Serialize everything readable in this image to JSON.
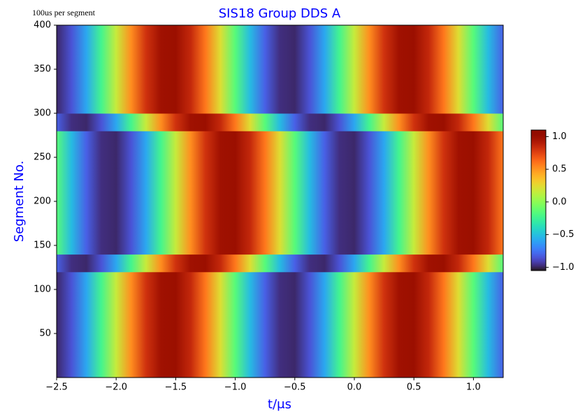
{
  "chart_data": {
    "type": "heatmap",
    "title": "SIS18 Group DDS A",
    "annotation": "100us per segment",
    "x_label": "t/μs",
    "y_label": "Segment No.",
    "colormap": "turbo",
    "colorbar": true,
    "clim": [
      -1.05,
      1.1
    ],
    "cticks": [
      {
        "value": -1.0,
        "label": "−1.0"
      },
      {
        "value": -0.5,
        "label": "−0.5"
      },
      {
        "value": 0.0,
        "label": "0.0"
      },
      {
        "value": 0.5,
        "label": "0.5"
      },
      {
        "value": 1.0,
        "label": "1.0"
      }
    ],
    "xlim": [
      -2.5,
      1.25
    ],
    "ylim": [
      0,
      400
    ],
    "xticks": [
      {
        "value": -2.5,
        "label": "−2.5"
      },
      {
        "value": -2.0,
        "label": "−2.0"
      },
      {
        "value": -1.5,
        "label": "−1.5"
      },
      {
        "value": -1.0,
        "label": "−1.0"
      },
      {
        "value": -0.5,
        "label": "−0.5"
      },
      {
        "value": 0.0,
        "label": "0.0"
      },
      {
        "value": 0.5,
        "label": "0.5"
      },
      {
        "value": 1.0,
        "label": "1.0"
      }
    ],
    "yticks": [
      50,
      100,
      150,
      200,
      250,
      300,
      350,
      400
    ],
    "x": [
      -2.5,
      -2.375,
      -2.25,
      -2.125,
      -2.0,
      -1.875,
      -1.75,
      -1.625,
      -1.5,
      -1.375,
      -1.25,
      -1.125,
      -1.0,
      -0.875,
      -0.75,
      -0.625,
      -0.5,
      -0.375,
      -0.25,
      -0.125,
      0.0,
      0.125,
      0.25,
      0.375,
      0.5,
      0.625,
      0.75,
      0.875,
      1.0,
      1.125,
      1.25
    ],
    "y": [
      10,
      30,
      50,
      70,
      90,
      110,
      130,
      150,
      170,
      190,
      210,
      230,
      250,
      270,
      290,
      310,
      330,
      350,
      370,
      390
    ],
    "z": [
      [
        -0.99,
        -0.85,
        -0.59,
        -0.23,
        0.16,
        0.52,
        0.81,
        0.97,
        0.99,
        0.85,
        0.59,
        0.23,
        -0.16,
        -0.52,
        -0.81,
        -0.97,
        -0.99,
        -0.85,
        -0.59,
        -0.23,
        0.16,
        0.52,
        0.81,
        0.97,
        0.99,
        0.85,
        0.59,
        0.23,
        -0.16,
        -0.52,
        -0.81
      ],
      [
        -0.99,
        -0.85,
        -0.59,
        -0.23,
        0.16,
        0.52,
        0.81,
        0.97,
        0.99,
        0.85,
        0.59,
        0.23,
        -0.16,
        -0.52,
        -0.81,
        -0.97,
        -0.99,
        -0.85,
        -0.59,
        -0.23,
        0.16,
        0.52,
        0.81,
        0.97,
        0.99,
        0.85,
        0.59,
        0.23,
        -0.16,
        -0.52,
        -0.81
      ],
      [
        -0.99,
        -0.85,
        -0.59,
        -0.23,
        0.16,
        0.52,
        0.81,
        0.97,
        0.99,
        0.85,
        0.59,
        0.23,
        -0.16,
        -0.52,
        -0.81,
        -0.97,
        -0.99,
        -0.85,
        -0.59,
        -0.23,
        0.16,
        0.52,
        0.81,
        0.97,
        0.99,
        0.85,
        0.59,
        0.23,
        -0.16,
        -0.52,
        -0.81
      ],
      [
        -0.99,
        -0.85,
        -0.59,
        -0.23,
        0.16,
        0.52,
        0.81,
        0.97,
        0.99,
        0.85,
        0.59,
        0.23,
        -0.16,
        -0.52,
        -0.81,
        -0.97,
        -0.99,
        -0.85,
        -0.59,
        -0.23,
        0.16,
        0.52,
        0.81,
        0.97,
        0.99,
        0.85,
        0.59,
        0.23,
        -0.16,
        -0.52,
        -0.81
      ],
      [
        -0.99,
        -0.85,
        -0.59,
        -0.23,
        0.16,
        0.52,
        0.81,
        0.97,
        0.99,
        0.85,
        0.59,
        0.23,
        -0.16,
        -0.52,
        -0.81,
        -0.97,
        -0.99,
        -0.85,
        -0.59,
        -0.23,
        0.16,
        0.52,
        0.81,
        0.97,
        0.99,
        0.85,
        0.59,
        0.23,
        -0.16,
        -0.52,
        -0.81
      ],
      [
        -0.99,
        -0.85,
        -0.59,
        -0.23,
        0.16,
        0.52,
        0.81,
        0.97,
        0.99,
        0.85,
        0.59,
        0.23,
        -0.16,
        -0.52,
        -0.81,
        -0.97,
        -0.99,
        -0.85,
        -0.59,
        -0.23,
        0.16,
        0.52,
        0.81,
        0.97,
        0.99,
        0.85,
        0.59,
        0.23,
        -0.16,
        -0.52,
        -0.81
      ],
      [
        -0.81,
        -0.97,
        -0.99,
        -0.85,
        -0.59,
        -0.23,
        0.16,
        0.52,
        0.81,
        0.97,
        0.99,
        0.85,
        0.59,
        0.23,
        -0.16,
        -0.52,
        -0.81,
        -0.97,
        -0.99,
        -0.85,
        -0.59,
        -0.23,
        0.16,
        0.52,
        0.81,
        0.97,
        0.99,
        0.85,
        0.59,
        0.23,
        -0.16
      ],
      [
        -0.16,
        -0.52,
        -0.81,
        -0.97,
        -0.99,
        -0.85,
        -0.59,
        -0.23,
        0.16,
        0.52,
        0.81,
        0.97,
        0.99,
        0.85,
        0.59,
        0.23,
        -0.16,
        -0.52,
        -0.81,
        -0.97,
        -0.99,
        -0.85,
        -0.59,
        -0.23,
        0.16,
        0.52,
        0.81,
        0.97,
        0.99,
        0.85,
        0.59
      ],
      [
        -0.16,
        -0.52,
        -0.81,
        -0.97,
        -0.99,
        -0.85,
        -0.59,
        -0.23,
        0.16,
        0.52,
        0.81,
        0.97,
        0.99,
        0.85,
        0.59,
        0.23,
        -0.16,
        -0.52,
        -0.81,
        -0.97,
        -0.99,
        -0.85,
        -0.59,
        -0.23,
        0.16,
        0.52,
        0.81,
        0.97,
        0.99,
        0.85,
        0.59
      ],
      [
        -0.16,
        -0.52,
        -0.81,
        -0.97,
        -0.99,
        -0.85,
        -0.59,
        -0.23,
        0.16,
        0.52,
        0.81,
        0.97,
        0.99,
        0.85,
        0.59,
        0.23,
        -0.16,
        -0.52,
        -0.81,
        -0.97,
        -0.99,
        -0.85,
        -0.59,
        -0.23,
        0.16,
        0.52,
        0.81,
        0.97,
        0.99,
        0.85,
        0.59
      ],
      [
        -0.16,
        -0.52,
        -0.81,
        -0.97,
        -0.99,
        -0.85,
        -0.59,
        -0.23,
        0.16,
        0.52,
        0.81,
        0.97,
        0.99,
        0.85,
        0.59,
        0.23,
        -0.16,
        -0.52,
        -0.81,
        -0.97,
        -0.99,
        -0.85,
        -0.59,
        -0.23,
        0.16,
        0.52,
        0.81,
        0.97,
        0.99,
        0.85,
        0.59
      ],
      [
        -0.16,
        -0.52,
        -0.81,
        -0.97,
        -0.99,
        -0.85,
        -0.59,
        -0.23,
        0.16,
        0.52,
        0.81,
        0.97,
        0.99,
        0.85,
        0.59,
        0.23,
        -0.16,
        -0.52,
        -0.81,
        -0.97,
        -0.99,
        -0.85,
        -0.59,
        -0.23,
        0.16,
        0.52,
        0.81,
        0.97,
        0.99,
        0.85,
        0.59
      ],
      [
        -0.16,
        -0.52,
        -0.81,
        -0.97,
        -0.99,
        -0.85,
        -0.59,
        -0.23,
        0.16,
        0.52,
        0.81,
        0.97,
        0.99,
        0.85,
        0.59,
        0.23,
        -0.16,
        -0.52,
        -0.81,
        -0.97,
        -0.99,
        -0.85,
        -0.59,
        -0.23,
        0.16,
        0.52,
        0.81,
        0.97,
        0.99,
        0.85,
        0.59
      ],
      [
        -0.16,
        -0.52,
        -0.81,
        -0.97,
        -0.99,
        -0.85,
        -0.59,
        -0.23,
        0.16,
        0.52,
        0.81,
        0.97,
        0.99,
        0.85,
        0.59,
        0.23,
        -0.16,
        -0.52,
        -0.81,
        -0.97,
        -0.99,
        -0.85,
        -0.59,
        -0.23,
        0.16,
        0.52,
        0.81,
        0.97,
        0.99,
        0.85,
        0.59
      ],
      [
        -0.81,
        -0.97,
        -0.99,
        -0.85,
        -0.59,
        -0.23,
        0.16,
        0.52,
        0.81,
        0.97,
        0.99,
        0.85,
        0.59,
        0.23,
        -0.16,
        -0.52,
        -0.81,
        -0.97,
        -0.99,
        -0.85,
        -0.59,
        -0.23,
        0.16,
        0.52,
        0.81,
        0.97,
        0.99,
        0.85,
        0.59,
        0.23,
        -0.16
      ],
      [
        -0.99,
        -0.85,
        -0.59,
        -0.23,
        0.16,
        0.52,
        0.81,
        0.97,
        0.99,
        0.85,
        0.59,
        0.23,
        -0.16,
        -0.52,
        -0.81,
        -0.97,
        -0.99,
        -0.85,
        -0.59,
        -0.23,
        0.16,
        0.52,
        0.81,
        0.97,
        0.99,
        0.85,
        0.59,
        0.23,
        -0.16,
        -0.52,
        -0.81
      ],
      [
        -0.99,
        -0.85,
        -0.59,
        -0.23,
        0.16,
        0.52,
        0.81,
        0.97,
        0.99,
        0.85,
        0.59,
        0.23,
        -0.16,
        -0.52,
        -0.81,
        -0.97,
        -0.99,
        -0.85,
        -0.59,
        -0.23,
        0.16,
        0.52,
        0.81,
        0.97,
        0.99,
        0.85,
        0.59,
        0.23,
        -0.16,
        -0.52,
        -0.81
      ],
      [
        -0.99,
        -0.85,
        -0.59,
        -0.23,
        0.16,
        0.52,
        0.81,
        0.97,
        0.99,
        0.85,
        0.59,
        0.23,
        -0.16,
        -0.52,
        -0.81,
        -0.97,
        -0.99,
        -0.85,
        -0.59,
        -0.23,
        0.16,
        0.52,
        0.81,
        0.97,
        0.99,
        0.85,
        0.59,
        0.23,
        -0.16,
        -0.52,
        -0.81
      ],
      [
        -0.99,
        -0.85,
        -0.59,
        -0.23,
        0.16,
        0.52,
        0.81,
        0.97,
        0.99,
        0.85,
        0.59,
        0.23,
        -0.16,
        -0.52,
        -0.81,
        -0.97,
        -0.99,
        -0.85,
        -0.59,
        -0.23,
        0.16,
        0.52,
        0.81,
        0.97,
        0.99,
        0.85,
        0.59,
        0.23,
        -0.16,
        -0.52,
        -0.81
      ],
      [
        -0.99,
        -0.85,
        -0.59,
        -0.23,
        0.16,
        0.52,
        0.81,
        0.97,
        0.99,
        0.85,
        0.59,
        0.23,
        -0.16,
        -0.52,
        -0.81,
        -0.97,
        -0.99,
        -0.85,
        -0.59,
        -0.23,
        0.16,
        0.52,
        0.81,
        0.97,
        0.99,
        0.85,
        0.59,
        0.23,
        -0.16,
        -0.52,
        -0.81
      ]
    ]
  }
}
